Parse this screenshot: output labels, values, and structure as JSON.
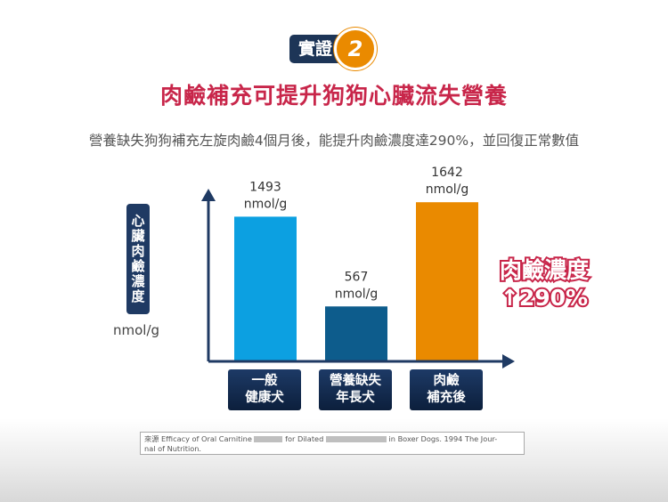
{
  "badge": {
    "label": "實證",
    "number": "2"
  },
  "title": "肉鹼補充可提升狗狗心臟流失營養",
  "subtitle": "營養缺失狗狗補充左旋肉鹼4個月後，能提升肉鹼濃度達290%，並回復正常數值",
  "axis": {
    "ylabel_chars": [
      "心",
      "臟",
      "肉",
      "鹼",
      "濃",
      "度"
    ],
    "unit": "nmol/g"
  },
  "callout": {
    "line1": "肉鹼濃度",
    "line2": "↑290%"
  },
  "source": {
    "part1": "來源 Efficacy of Oral Carnitine",
    "part2": "for Dilated",
    "part3": "in Boxer Dogs. 1994 The Jour-",
    "part4": "nal of Nutrition."
  },
  "colors": {
    "bar1": "#0ca0e1",
    "bar2": "#0d5c8c",
    "bar3": "#ea8a00",
    "title": "#c8264a",
    "dark": "#1f3a63"
  },
  "chart_data": {
    "type": "bar",
    "categories": [
      [
        "一般",
        "健康犬"
      ],
      [
        "營養缺失",
        "年長犬"
      ],
      [
        "肉鹼",
        "補充後"
      ]
    ],
    "values": [
      1493,
      567,
      1642
    ],
    "value_labels": [
      "1493",
      "567",
      "1642"
    ],
    "unit": "nmol/g",
    "ylim": [
      0,
      1800
    ]
  }
}
